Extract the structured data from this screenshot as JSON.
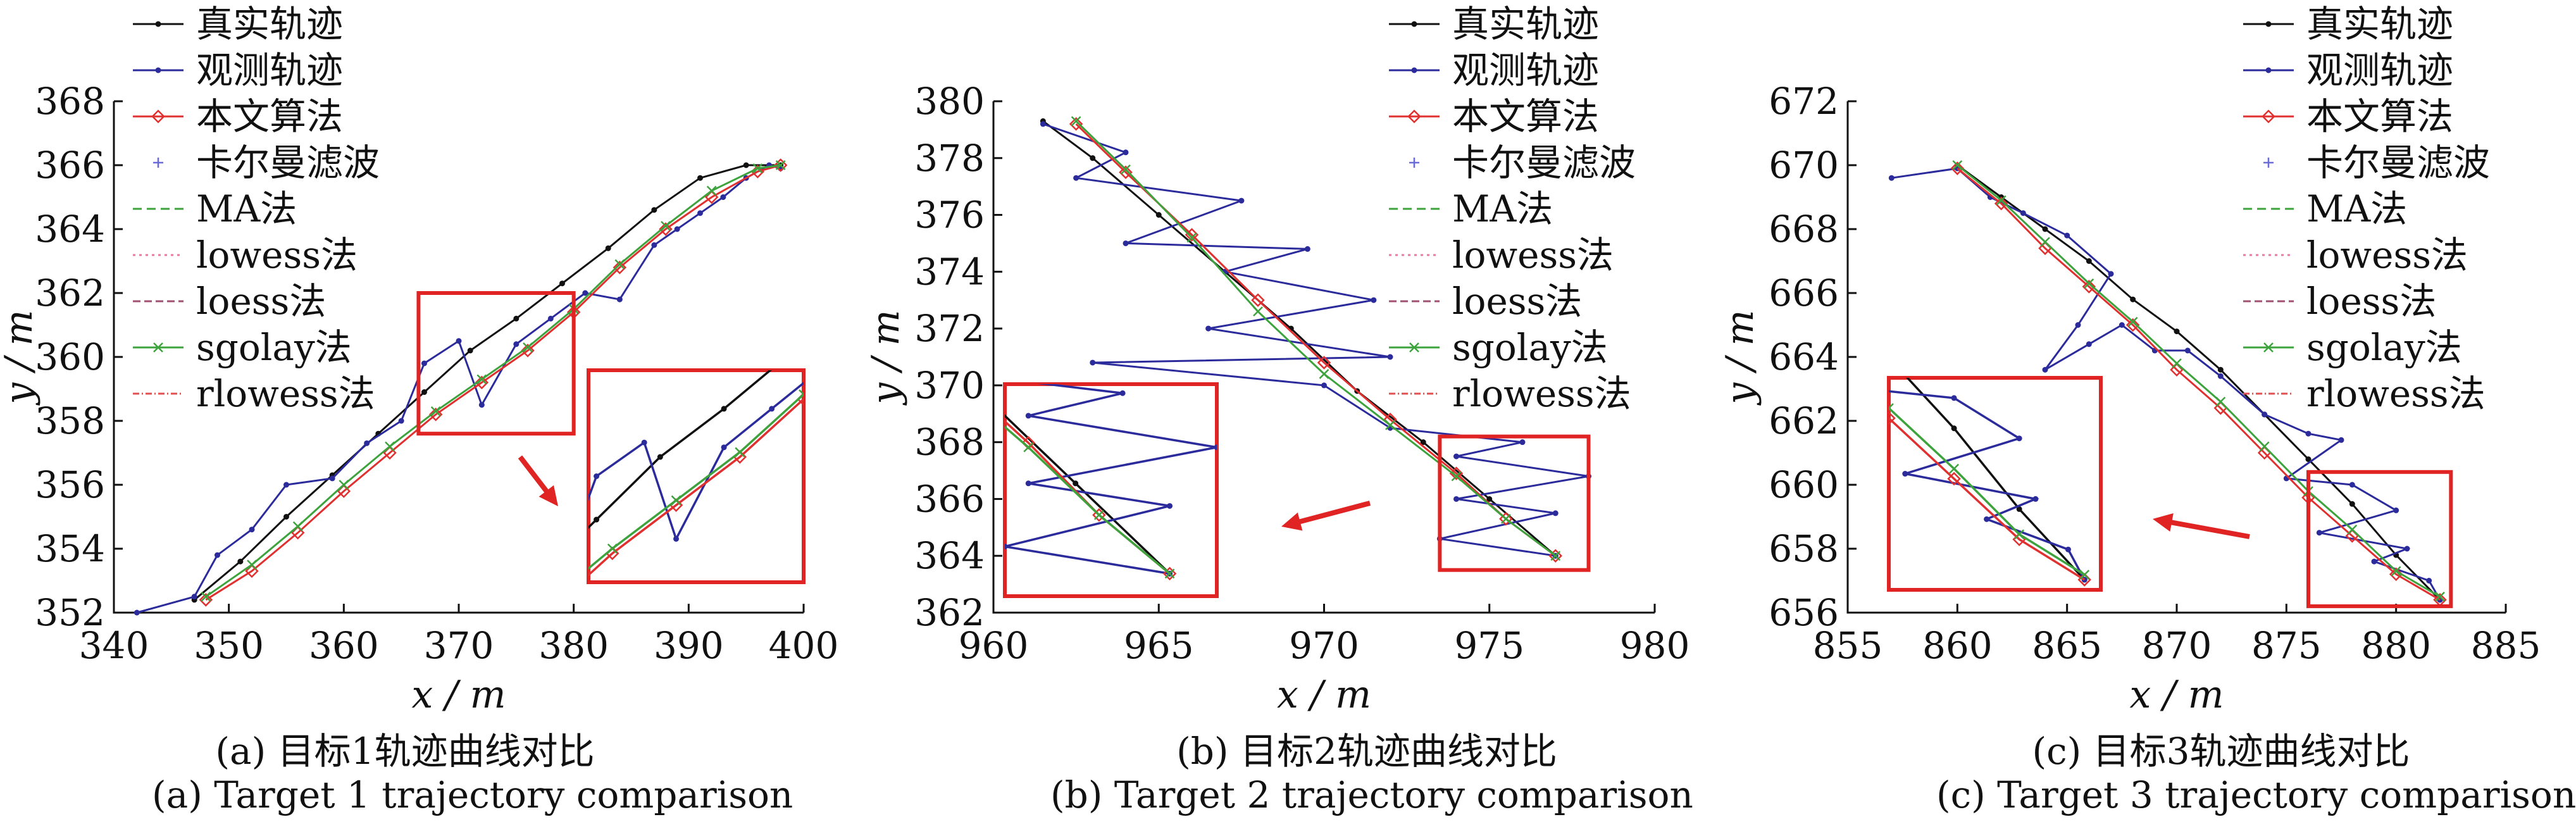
{
  "figure": {
    "legend": [
      {
        "label": "真实轨迹",
        "color": "#111111",
        "marker": "dot",
        "dash": ""
      },
      {
        "label": "观测轨迹",
        "color": "#2b2b9c",
        "marker": "dot",
        "dash": ""
      },
      {
        "label": "本文算法",
        "color": "#e03030",
        "marker": "diamond",
        "dash": ""
      },
      {
        "label": "卡尔曼滤波",
        "color": "#6a6ad8",
        "marker": "plus",
        "dash": "none"
      },
      {
        "label": "MA法",
        "color": "#3da33d",
        "marker": "",
        "dash": "14,8"
      },
      {
        "label": "lowess法",
        "color": "#e87aa0",
        "marker": "",
        "dash": "4,6"
      },
      {
        "label": "loess法",
        "color": "#a05070",
        "marker": "",
        "dash": "12,6"
      },
      {
        "label": "sgolay法",
        "color": "#3da33d",
        "marker": "x",
        "dash": ""
      },
      {
        "label": "rlowess法",
        "color": "#e05050",
        "marker": "",
        "dash": "10,4,2,4"
      }
    ],
    "colors": {
      "box": "#e02424",
      "arrow": "#e02424"
    }
  },
  "chart_data": [
    {
      "type": "line",
      "xlabel": "x / m",
      "ylabel": "y / m",
      "xlim": [
        340,
        400
      ],
      "ylim": [
        352,
        368
      ],
      "xticks": [
        "340",
        "350",
        "360",
        "370",
        "380",
        "390",
        "400"
      ],
      "yticks": [
        "352",
        "354",
        "356",
        "358",
        "360",
        "362",
        "364",
        "366",
        "368"
      ],
      "caption_cn": "(a) 目标1轨迹曲线对比",
      "caption_en": "(a) Target 1 trajectory comparison",
      "legend_shown": [
        0,
        1,
        2,
        3,
        4,
        5,
        6,
        7,
        8
      ],
      "zoom_box": {
        "x": [
          366.5,
          380
        ],
        "y": [
          357.6,
          362
        ]
      },
      "arrow_dir": "down-right",
      "series": [
        {
          "name": "真实轨迹",
          "x": [
            347,
            351,
            355,
            359,
            363,
            367,
            371,
            375,
            379,
            383,
            387,
            391,
            395,
            398
          ],
          "y": [
            352.4,
            353.6,
            355.0,
            356.3,
            357.6,
            358.9,
            360.2,
            361.2,
            362.3,
            363.4,
            364.6,
            365.6,
            366.0,
            366.0
          ]
        },
        {
          "name": "观测轨迹",
          "x": [
            342,
            347,
            349,
            352,
            355,
            359,
            362,
            365,
            367,
            370,
            372,
            375,
            378,
            381,
            384,
            387,
            389,
            391,
            393,
            395,
            397,
            398
          ],
          "y": [
            352.0,
            352.5,
            353.8,
            354.6,
            356.0,
            356.2,
            357.3,
            358.0,
            359.8,
            360.5,
            358.5,
            360.4,
            361.2,
            362.0,
            361.8,
            363.5,
            364.0,
            364.5,
            365.0,
            365.6,
            366.0,
            365.9
          ]
        },
        {
          "name": "本文算法",
          "x": [
            348,
            352,
            356,
            360,
            364,
            368,
            372,
            376,
            380,
            384,
            388,
            392,
            396,
            398
          ],
          "y": [
            352.4,
            353.3,
            354.5,
            355.8,
            357.0,
            358.2,
            359.2,
            360.2,
            361.4,
            362.8,
            364.0,
            365.0,
            365.8,
            366.0
          ]
        },
        {
          "name": "sgolay法",
          "x": [
            348,
            352,
            356,
            360,
            364,
            368,
            372,
            376,
            380,
            384,
            388,
            392,
            396,
            398
          ],
          "y": [
            352.5,
            353.5,
            354.7,
            356.0,
            357.2,
            358.3,
            359.3,
            360.3,
            361.5,
            362.9,
            364.1,
            365.2,
            365.9,
            366.0
          ]
        }
      ]
    },
    {
      "type": "line",
      "xlabel": "x / m",
      "ylabel": "y / m",
      "xlim": [
        960,
        980
      ],
      "ylim": [
        362,
        380
      ],
      "xticks": [
        "960",
        "965",
        "970",
        "975",
        "980"
      ],
      "yticks": [
        "362",
        "364",
        "366",
        "368",
        "370",
        "372",
        "374",
        "376",
        "378",
        "380"
      ],
      "caption_cn": "(b) 目标2轨迹曲线对比",
      "caption_en": "(b) Target 2 trajectory comparison",
      "legend_shown": [
        0,
        1,
        2,
        3,
        4,
        5,
        6,
        7,
        8
      ],
      "zoom_box": {
        "x": [
          973.5,
          978
        ],
        "y": [
          363.5,
          368.2
        ]
      },
      "arrow_dir": "left",
      "series": [
        {
          "name": "真实轨迹",
          "x": [
            961.5,
            963,
            965,
            967,
            969,
            971,
            973,
            975,
            977
          ],
          "y": [
            379.3,
            378.0,
            376.0,
            374.0,
            372.0,
            369.8,
            368.0,
            366.0,
            364.0
          ]
        },
        {
          "name": "观测轨迹",
          "x": [
            961.5,
            964,
            962.5,
            967.5,
            964,
            969.5,
            967,
            971.5,
            966.5,
            972,
            963,
            970,
            972,
            976,
            974,
            978,
            974,
            977,
            973.5,
            977
          ],
          "y": [
            379.2,
            378.2,
            377.3,
            376.5,
            375.0,
            374.8,
            374.0,
            373.0,
            372.0,
            371.0,
            370.8,
            370.0,
            368.5,
            368.0,
            367.5,
            366.8,
            366.0,
            365.5,
            364.6,
            364.0
          ]
        },
        {
          "name": "本文算法",
          "x": [
            962.5,
            964,
            966,
            968,
            970,
            972,
            974,
            975.5,
            977
          ],
          "y": [
            379.2,
            377.5,
            375.3,
            373.0,
            370.8,
            368.8,
            366.9,
            365.3,
            364.0
          ]
        },
        {
          "name": "sgolay法",
          "x": [
            962.5,
            964,
            966,
            968,
            970,
            972,
            974,
            975.5,
            977
          ],
          "y": [
            379.3,
            377.6,
            375.2,
            372.6,
            370.4,
            368.6,
            366.8,
            365.3,
            364.0
          ]
        }
      ]
    },
    {
      "type": "line",
      "xlabel": "x / m",
      "ylabel": "y / m",
      "xlim": [
        855,
        885
      ],
      "ylim": [
        656,
        672
      ],
      "xticks": [
        "855",
        "860",
        "865",
        "870",
        "875",
        "880",
        "885"
      ],
      "yticks": [
        "656",
        "658",
        "660",
        "662",
        "664",
        "666",
        "668",
        "670",
        "672"
      ],
      "caption_cn": "(c) 目标3轨迹曲线对比",
      "caption_en": "(c) Target 3 trajectory comparison",
      "legend_shown": [
        0,
        1,
        2,
        3,
        4,
        5,
        6,
        7,
        8
      ],
      "zoom_box": {
        "x": [
          876,
          882.5
        ],
        "y": [
          656.2,
          660.4
        ]
      },
      "arrow_dir": "left",
      "series": [
        {
          "name": "真实轨迹",
          "x": [
            860,
            862,
            864,
            866,
            868,
            870,
            872,
            874,
            876,
            878,
            880,
            882
          ],
          "y": [
            670.0,
            669.0,
            668.0,
            667.0,
            665.8,
            664.8,
            663.6,
            662.2,
            660.8,
            659.4,
            657.8,
            656.4
          ]
        },
        {
          "name": "观测轨迹",
          "x": [
            857,
            860,
            861.5,
            863,
            865,
            867,
            865.5,
            864,
            866,
            867.5,
            869,
            870.5,
            872,
            874,
            876,
            877.5,
            875,
            878,
            880,
            876.5,
            880.5,
            879,
            881.5,
            882
          ],
          "y": [
            669.6,
            669.9,
            669.0,
            668.5,
            667.8,
            666.6,
            665.0,
            663.6,
            664.4,
            665.0,
            664.2,
            664.2,
            663.4,
            662.2,
            661.6,
            661.4,
            660.2,
            660.0,
            659.2,
            658.5,
            658.0,
            657.6,
            657.0,
            656.4
          ]
        },
        {
          "name": "本文算法",
          "x": [
            860,
            862,
            864,
            866,
            868,
            870,
            872,
            874,
            876,
            878,
            880,
            882
          ],
          "y": [
            669.9,
            668.8,
            667.4,
            666.2,
            665.0,
            663.6,
            662.4,
            661.0,
            659.6,
            658.4,
            657.2,
            656.4
          ]
        },
        {
          "name": "sgolay法",
          "x": [
            860,
            862,
            864,
            866,
            868,
            870,
            872,
            874,
            876,
            878,
            880,
            882
          ],
          "y": [
            670.0,
            668.9,
            667.6,
            666.3,
            665.1,
            663.8,
            662.6,
            661.2,
            659.8,
            658.6,
            657.3,
            656.5
          ]
        }
      ]
    }
  ]
}
